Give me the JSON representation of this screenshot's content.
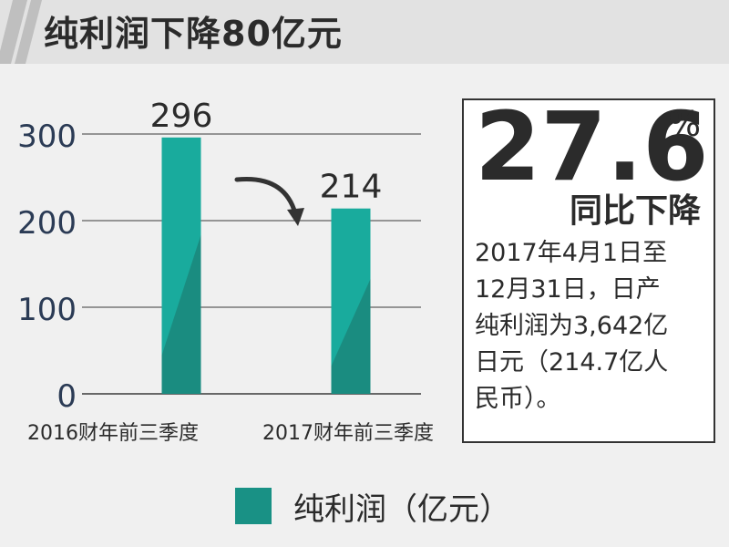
{
  "header": {
    "title": "纯利润下降80亿元"
  },
  "chart_data": {
    "type": "bar",
    "categories": [
      "2016财年前三季度",
      "2017财年前三季度"
    ],
    "series": [
      {
        "name": "纯利润（亿元）",
        "values": [
          296,
          214
        ]
      }
    ],
    "value_labels": [
      "296",
      "214"
    ],
    "y_ticks": [
      "0",
      "100",
      "200",
      "300"
    ],
    "ylim": [
      0,
      300
    ],
    "grid": true,
    "legend": "bottom-center",
    "colors": {
      "bar": "#19ab9d",
      "bar_shade": "#1a8c80",
      "legend": "#199185"
    }
  },
  "stat": {
    "number": "27.6",
    "unit": "%",
    "label": "同比下降",
    "description_lines": [
      "2017年4月1日至",
      "12月31日，日产",
      "纯利润为3,642亿",
      "日元（214.7亿人",
      "民币）。"
    ]
  },
  "legend": {
    "label": "纯利润（亿元）"
  }
}
